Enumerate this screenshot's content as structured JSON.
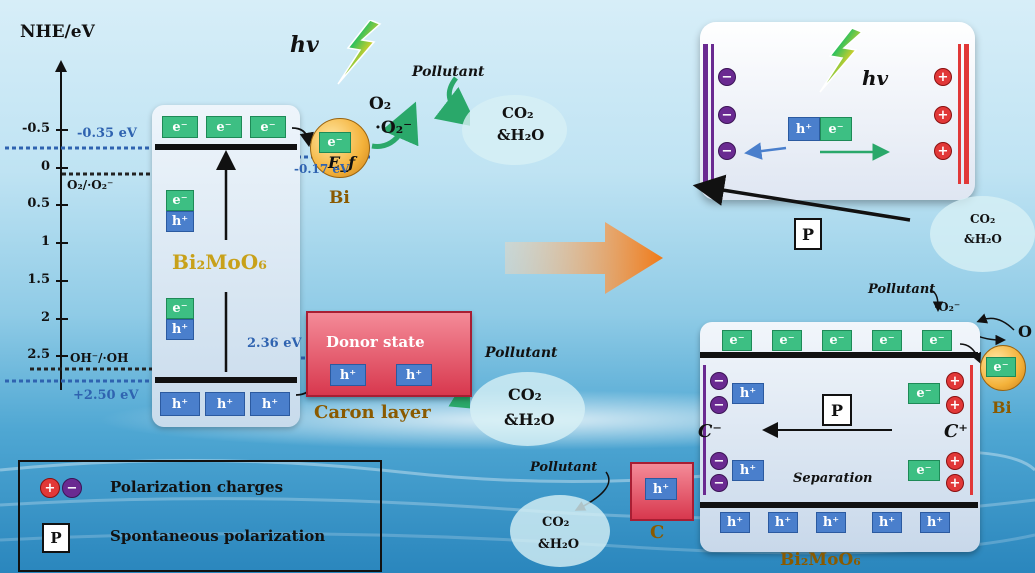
{
  "axis": {
    "title": "NHE/eV",
    "ticks": [
      "-0.5",
      "0",
      "0.5",
      "1",
      "1.5",
      "2",
      "2.5"
    ]
  },
  "left_panel": {
    "hv": "hv",
    "cb_potential": "-0.35 eV",
    "vb_potential": "+2.50 eV",
    "bi_potential": "-0.17 eV",
    "donor_potential": "2.36 eV",
    "o2_couple": "O₂/·O₂⁻",
    "oh_couple": "OH⁻/·OH",
    "material": "Bi₂MoO₆",
    "electron": "e⁻",
    "hole": "h⁺",
    "bi_fermi": "E_f",
    "bi_label": "Bi",
    "o2": "O₂",
    "superoxide": "·O₂⁻",
    "pollutant_top": "Pollutant",
    "co2_top": "CO₂",
    "h2o_top": "&H₂O",
    "donor_label": "Donor state",
    "carbon_layer": "Caron layer",
    "pollutant_mid": "Pollutant",
    "co2_mid": "CO₂",
    "h2o_mid": "&H₂O"
  },
  "right_top": {
    "hv": "hv",
    "polarization": "P",
    "hole": "h⁺",
    "electron": "e⁻",
    "co2": "CO₂",
    "h2o": "&H₂O"
  },
  "right_bottom": {
    "pollutant_a": "Pollutant",
    "superoxide": "·O₂⁻",
    "o2_cut": "O",
    "electron": "e⁻",
    "hole": "h⁺",
    "polarization": "P",
    "c_minus": "C⁻",
    "c_plus": "C⁺",
    "separation": "Separation",
    "bi_label": "Bi",
    "material": "Bi₂MoO₆",
    "pollutant_b": "Pollutant",
    "c_label": "C",
    "co2": "CO₂",
    "h2o": "&H₂O"
  },
  "legend": {
    "charges": "Polarization charges",
    "spontaneous": "Spontaneous polarization",
    "p_symbol": "P"
  },
  "colors": {
    "electron": "#3dbf83",
    "hole": "#4a7fcc",
    "positive": "#e13838",
    "negative": "#6a2a91",
    "donor": "#e25a6e",
    "bi": "#f4b23a",
    "potential_text": "#2f63b0",
    "arrow_green": "#2aa86a"
  }
}
